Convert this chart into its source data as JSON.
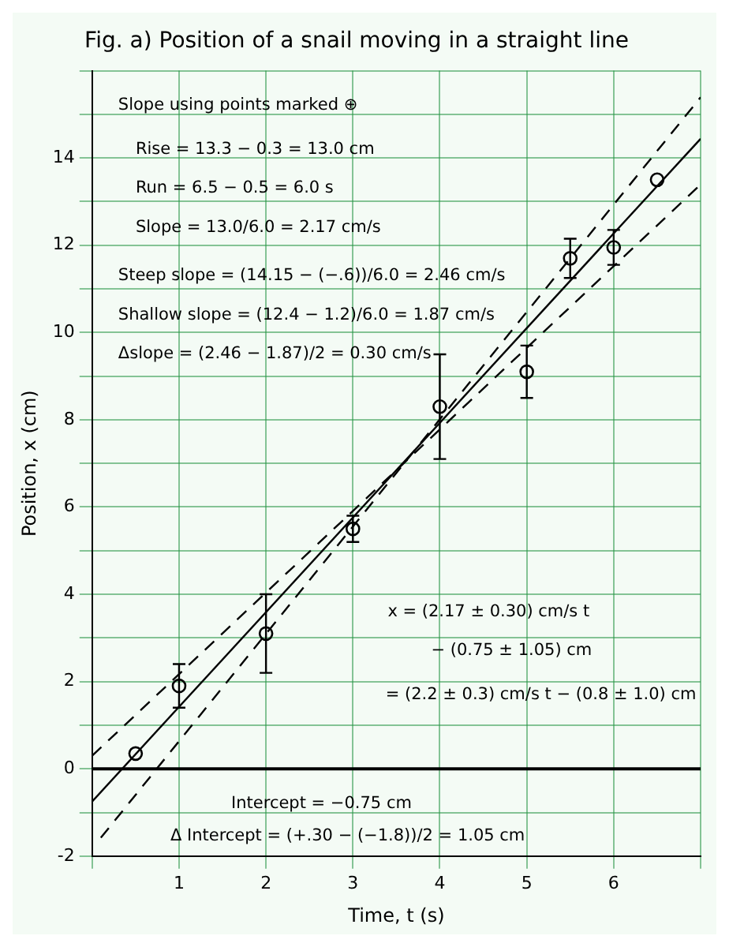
{
  "chart_data": {
    "type": "scatter",
    "title": "Fig. a) Position of a snail moving in a straight line",
    "xlabel": "Time, t (s)",
    "ylabel": "Position, x (cm)",
    "xlim": [
      0,
      7
    ],
    "xticks": [
      {
        "value": 0,
        "label": null
      },
      1,
      2,
      3,
      4,
      5,
      6,
      {
        "value": 7,
        "label": null
      }
    ],
    "ylim": [
      -2,
      16
    ],
    "yticks": [
      -2,
      {
        "value": -1,
        "label": null
      },
      0,
      {
        "value": 1,
        "label": null
      },
      2,
      {
        "value": 3,
        "label": null
      },
      4,
      {
        "value": 5,
        "label": null
      },
      6,
      {
        "value": 7,
        "label": null
      },
      8,
      {
        "value": 9,
        "label": null
      },
      10,
      {
        "value": 11,
        "label": null
      },
      12,
      {
        "value": 13,
        "label": null
      },
      14,
      {
        "value": 15,
        "label": null
      },
      {
        "value": 16,
        "label": null
      }
    ],
    "grid": true,
    "legend": false,
    "marker": "circle",
    "series": [
      {
        "type": "scatter",
        "color": "#000000",
        "x": [
          0.5,
          1,
          2,
          3,
          4,
          5,
          5.5,
          6,
          6.5
        ],
        "values": [
          0.35,
          1.9,
          3.1,
          5.5,
          8.3,
          9.1,
          11.7,
          11.95,
          13.5
        ],
        "errors": [
          null,
          0.5,
          0.9,
          0.3,
          1.2,
          0.6,
          0.45,
          0.4,
          null
        ]
      },
      {
        "type": "line",
        "color": "#000000",
        "line_style": "solid",
        "marker": "none",
        "x": [
          0,
          7
        ],
        "values": [
          -0.75,
          14.44
        ]
      },
      {
        "type": "line",
        "color": "#000000",
        "line_style": "dashed",
        "marker": "none",
        "x": [
          0.1,
          7
        ],
        "values": [
          -1.58,
          15.39
        ]
      },
      {
        "type": "line",
        "color": "#000000",
        "line_style": "dashed",
        "marker": "none",
        "x": [
          0,
          7
        ],
        "values": [
          0.3,
          13.39
        ]
      }
    ],
    "ref_lines": [
      {
        "axis": "y",
        "value": 0,
        "color": "#000000"
      }
    ],
    "annotations": [
      "Slope using points marked ⊕",
      "Rise = 13.3 − 0.3 = 13.0 cm",
      "Run = 6.5 − 0.5 = 6.0 s",
      "Slope = 13.0/6.0 = 2.17 cm/s",
      "Steep slope = (14.15 − (−.6))/6.0 = 2.46 cm/s",
      "Shallow slope = (12.4 − 1.2)/6.0 = 1.87 cm/s",
      "Δslope = (2.46 − 1.87)/2 = 0.30 cm/s",
      "x = (2.17 ± 0.30) cm/s t",
      "− (0.75 ± 1.05) cm",
      "= (2.2 ± 0.3) cm/s t − (0.8 ± 1.0) cm",
      "Intercept = −0.75 cm",
      "Δ Intercept = (+.30 − (−1.8))/2 = 1.05 cm"
    ]
  }
}
